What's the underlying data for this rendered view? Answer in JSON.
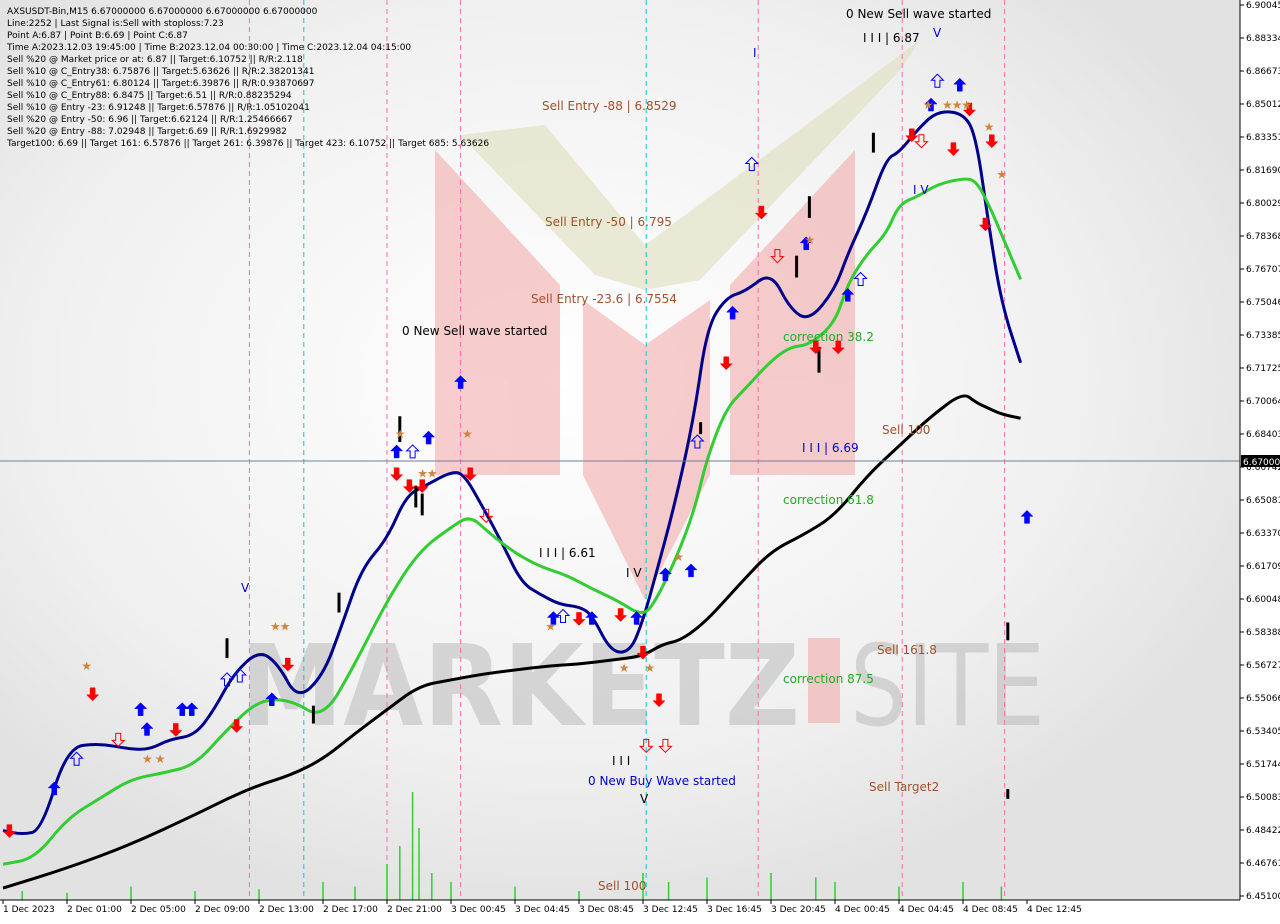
{
  "info": {
    "lines": [
      "AXSUSDT-Bin,M15  6.67000000 6.67000000 6.67000000 6.67000000",
      "Line:2252 | Last Signal is:Sell with stoploss:7.23",
      "Point A:6.87 | Point B:6.69 | Point C:6.87",
      "Time A:2023.12.03 19:45:00 | Time B:2023.12.04 00:30:00 | Time C:2023.12.04 04:15:00",
      "Sell %20 @ Market price or at: 6.87 || Target:6.10752 || R/R:2.118",
      "Sell %10 @ C_Entry38: 6.75876 || Target:5.63626 || R/R:2.38201341",
      "Sell %10 @ C_Entry61: 6.80124 || Target:6.39876 || R/R:0.93870697",
      "Sell %10 @ C_Entry88: 6.8475 || Target:6.51 || R/R:0.88235294",
      "Sell %10 @ Entry -23: 6.91248 || Target:6.57876 || R/R:1.05102041",
      "Sell %20 @ Entry -50: 6.96 || Target:6.62124 || R/R:1.25466667",
      "Sell %20 @ Entry -88: 7.02948 || Target:6.69 || R/R:1.6929982",
      "Target100: 6.69 || Target 161: 6.57876 || Target 261: 6.39876 || Target 423: 6.10752 || Target 685: 5.63626"
    ]
  },
  "price_tag": "6.67000",
  "colors": {
    "background": "#ffffff",
    "fast_ma": "#00008b",
    "mid_ma": "#32cd32",
    "slow_ma": "#000000",
    "annotation_brown": "#a0522d",
    "annotation_green": "#22aa22",
    "annotation_blue": "#0000cd",
    "buy_arrow": "#0000ff",
    "sell_arrow": "#ff0000",
    "magenta_vline": "#ff69b4",
    "cyan_vline": "#00ced1"
  },
  "annotations": {
    "sell_wave_top": "0 New Sell wave started",
    "sell_wave_mid": "0 New Sell wave started",
    "buy_wave": "0 New Buy Wave started",
    "entry_88": "Sell Entry -88 | 6.8529",
    "entry_50": "Sell Entry -50 | 6.795",
    "entry_236": "Sell Entry -23.6 | 6.7554",
    "corr_382": "correction 38.2",
    "corr_618": "correction 61.8",
    "corr_875": "correction 87.5",
    "sell_100": "Sell 100",
    "sell_1618": "Sell 161.8",
    "sell_target2": "Sell Target2",
    "sell_100_bottom": "Sell 100",
    "wave_iii_661": "I I I | 6.61",
    "wave_iii_669": "I I I | 6.69",
    "wave_iii_687": "I I I | 6.87",
    "wave_iv_1": "I V",
    "wave_iv_2": "I V",
    "wave_v_1": "V",
    "wave_v_2": "V",
    "wave_v_3": "V",
    "wave_iii_bottom": "I I I",
    "wave_i": "I"
  },
  "chart_data": {
    "type": "line",
    "title": "AXSUSDT-Bin,M15",
    "x_ticks": [
      "1 Dec 2023",
      "2 Dec 01:00",
      "2 Dec 05:00",
      "2 Dec 09:00",
      "2 Dec 13:00",
      "2 Dec 17:00",
      "2 Dec 21:00",
      "3 Dec 00:45",
      "3 Dec 04:45",
      "3 Dec 08:45",
      "3 Dec 12:45",
      "3 Dec 16:45",
      "3 Dec 20:45",
      "4 Dec 00:45",
      "4 Dec 04:45",
      "4 Dec 08:45",
      "4 Dec 12:45"
    ],
    "y_ticks": [
      "6.90045",
      "6.88334",
      "6.86673",
      "6.85012",
      "6.83351",
      "6.81690",
      "6.80029",
      "6.78368",
      "6.76707",
      "6.75046",
      "6.73385",
      "6.71725",
      "6.70064",
      "6.68403",
      "6.66742",
      "6.65081",
      "6.63370",
      "6.61709",
      "6.60048",
      "6.58388",
      "6.56727",
      "6.55066",
      "6.53405",
      "6.51744",
      "6.50083",
      "6.48422",
      "6.46761",
      "6.45100"
    ],
    "ylim": [
      6.451,
      6.90045
    ],
    "current_price": 6.67,
    "series": [
      {
        "name": "fast",
        "color": "#00008b",
        "x": [
          0,
          0.3,
          0.6,
          1,
          1.5,
          2,
          2.3,
          2.6,
          3,
          3.3,
          3.6,
          4,
          4.3,
          4.6,
          5,
          5.3,
          5.6,
          6,
          6.3,
          6.6,
          7,
          7.2,
          7.5,
          7.8,
          8.1,
          8.4,
          8.7,
          9,
          9.2,
          9.5,
          9.8,
          10,
          10.2,
          10.5,
          10.8,
          11,
          11.3,
          11.6,
          12,
          12.3,
          12.6,
          13,
          13.2,
          13.5,
          13.8,
          14,
          14.3,
          14.6,
          15,
          15.2,
          15.4,
          15.6,
          15.9
        ],
        "y": [
          6.484,
          6.482,
          6.484,
          6.526,
          6.528,
          6.525,
          6.525,
          6.53,
          6.532,
          6.545,
          6.563,
          6.575,
          6.568,
          6.55,
          6.562,
          6.588,
          6.616,
          6.631,
          6.653,
          6.658,
          6.665,
          6.664,
          6.647,
          6.629,
          6.609,
          6.603,
          6.598,
          6.597,
          6.593,
          6.574,
          6.574,
          6.59,
          6.613,
          6.649,
          6.693,
          6.738,
          6.753,
          6.756,
          6.766,
          6.747,
          6.741,
          6.757,
          6.775,
          6.796,
          6.823,
          6.826,
          6.838,
          6.847,
          6.846,
          6.835,
          6.79,
          6.75,
          6.72
        ]
      },
      {
        "name": "mid",
        "color": "#32cd32",
        "x": [
          0,
          0.5,
          1,
          1.5,
          2,
          2.5,
          3,
          3.5,
          4,
          4.5,
          5,
          5.5,
          6,
          6.5,
          7,
          7.3,
          7.6,
          8,
          8.4,
          8.8,
          9.2,
          9.6,
          10,
          10.2,
          10.5,
          10.8,
          11,
          11.3,
          11.6,
          12,
          12.3,
          12.6,
          13,
          13.2,
          13.5,
          13.8,
          14,
          14.3,
          14.6,
          15,
          15.2,
          15.4,
          15.6,
          15.9
        ],
        "y": [
          6.467,
          6.47,
          6.49,
          6.5,
          6.51,
          6.513,
          6.517,
          6.535,
          6.55,
          6.55,
          6.54,
          6.568,
          6.6,
          6.625,
          6.637,
          6.643,
          6.634,
          6.624,
          6.617,
          6.613,
          6.606,
          6.6,
          6.592,
          6.6,
          6.62,
          6.645,
          6.672,
          6.697,
          6.707,
          6.721,
          6.728,
          6.729,
          6.74,
          6.76,
          6.775,
          6.785,
          6.8,
          6.804,
          6.81,
          6.813,
          6.812,
          6.8,
          6.785,
          6.762
        ]
      },
      {
        "name": "slow",
        "color": "#000000",
        "x": [
          0,
          1,
          2,
          3,
          3.5,
          4,
          4.5,
          5,
          5.5,
          6,
          6.5,
          7,
          7.5,
          8,
          8.5,
          9,
          9.5,
          10,
          10.3,
          10.6,
          11,
          11.5,
          12,
          12.5,
          13,
          13.5,
          14,
          14.5,
          15,
          15.2,
          15.4,
          15.6,
          15.9
        ],
        "y": [
          6.455,
          6.465,
          6.477,
          6.492,
          6.5,
          6.507,
          6.512,
          6.52,
          6.533,
          6.545,
          6.557,
          6.56,
          6.563,
          6.565,
          6.567,
          6.568,
          6.57,
          6.572,
          6.578,
          6.58,
          6.59,
          6.608,
          6.625,
          6.633,
          6.643,
          6.663,
          6.678,
          6.693,
          6.705,
          6.7,
          6.697,
          6.694,
          6.692
        ]
      }
    ],
    "volume": [
      {
        "x": 0.3,
        "h": 0.01
      },
      {
        "x": 1,
        "h": 0.008
      },
      {
        "x": 2,
        "h": 0.015
      },
      {
        "x": 3,
        "h": 0.01
      },
      {
        "x": 4,
        "h": 0.012
      },
      {
        "x": 5,
        "h": 0.02
      },
      {
        "x": 5.5,
        "h": 0.015
      },
      {
        "x": 6.0,
        "h": 0.04
      },
      {
        "x": 6.2,
        "h": 0.06
      },
      {
        "x": 6.4,
        "h": 0.12
      },
      {
        "x": 6.5,
        "h": 0.08
      },
      {
        "x": 6.7,
        "h": 0.03
      },
      {
        "x": 7,
        "h": 0.02
      },
      {
        "x": 8,
        "h": 0.015
      },
      {
        "x": 9,
        "h": 0.01
      },
      {
        "x": 10,
        "h": 0.03
      },
      {
        "x": 10.4,
        "h": 0.02
      },
      {
        "x": 11,
        "h": 0.025
      },
      {
        "x": 12,
        "h": 0.03
      },
      {
        "x": 12.7,
        "h": 0.025
      },
      {
        "x": 13,
        "h": 0.02
      },
      {
        "x": 14,
        "h": 0.015
      },
      {
        "x": 15,
        "h": 0.02
      },
      {
        "x": 15.6,
        "h": 0.015
      }
    ],
    "magenta_lines": [
      3.85,
      6.0,
      7.15,
      11.8,
      14.05,
      15.65
    ],
    "cyan_lines": [
      4.7,
      10.05
    ],
    "buy_arrows": [
      [
        0.8,
        6.505
      ],
      [
        2.8,
        6.545
      ],
      [
        2.95,
        6.545
      ],
      [
        2.25,
        6.535
      ],
      [
        2.15,
        6.545
      ],
      [
        4.2,
        6.55
      ],
      [
        6.15,
        6.675
      ],
      [
        6.65,
        6.682
      ],
      [
        7.15,
        6.71
      ],
      [
        8.6,
        6.591
      ],
      [
        9.2,
        6.591
      ],
      [
        9.9,
        6.591
      ],
      [
        10.35,
        6.613
      ],
      [
        10.75,
        6.615
      ],
      [
        11.4,
        6.745
      ],
      [
        12.55,
        6.78
      ],
      [
        13.2,
        6.754
      ],
      [
        14.5,
        6.85
      ],
      [
        14.95,
        6.86
      ],
      [
        16.0,
        6.642
      ]
    ],
    "sell_arrows": [
      [
        0.1,
        6.484
      ],
      [
        1.4,
        6.553
      ],
      [
        2.7,
        6.535
      ],
      [
        3.65,
        6.537
      ],
      [
        4.45,
        6.568
      ],
      [
        6.15,
        6.664
      ],
      [
        6.35,
        6.658
      ],
      [
        6.55,
        6.658
      ],
      [
        7.3,
        6.664
      ],
      [
        9.0,
        6.591
      ],
      [
        9.65,
        6.593
      ],
      [
        10.0,
        6.574
      ],
      [
        10.25,
        6.55
      ],
      [
        11.3,
        6.72
      ],
      [
        11.85,
        6.796
      ],
      [
        12.7,
        6.728
      ],
      [
        13.05,
        6.728
      ],
      [
        14.2,
        6.835
      ],
      [
        14.85,
        6.828
      ],
      [
        15.1,
        6.848
      ],
      [
        15.45,
        6.832
      ],
      [
        15.35,
        6.79
      ]
    ],
    "hollow_buy_arrows": [
      [
        1.15,
        6.52
      ],
      [
        3.5,
        6.56
      ],
      [
        3.7,
        6.562
      ],
      [
        6.4,
        6.675
      ],
      [
        8.75,
        6.592
      ],
      [
        10.85,
        6.68
      ],
      [
        11.7,
        6.82
      ],
      [
        13.4,
        6.762
      ],
      [
        14.6,
        6.862
      ]
    ],
    "hollow_sell_arrows": [
      [
        1.8,
        6.53
      ],
      [
        7.55,
        6.643
      ],
      [
        10.05,
        6.527
      ],
      [
        10.35,
        6.527
      ],
      [
        12.1,
        6.774
      ],
      [
        14.35,
        6.832
      ]
    ],
    "stars": [
      [
        1.3,
        6.567
      ],
      [
        2.25,
        6.52
      ],
      [
        2.45,
        6.52
      ],
      [
        4.25,
        6.587
      ],
      [
        4.4,
        6.587
      ],
      [
        6.2,
        6.684
      ],
      [
        6.55,
        6.664
      ],
      [
        6.7,
        6.664
      ],
      [
        7.25,
        6.684
      ],
      [
        8.55,
        6.587
      ],
      [
        9.7,
        6.566
      ],
      [
        10.1,
        6.566
      ],
      [
        10.55,
        6.622
      ],
      [
        12.6,
        6.782
      ],
      [
        14.45,
        6.85
      ],
      [
        14.75,
        6.85
      ],
      [
        14.9,
        6.85
      ],
      [
        15.05,
        6.85
      ],
      [
        15.4,
        6.839
      ],
      [
        15.6,
        6.815
      ]
    ],
    "candles": [
      [
        3.5,
        6.581,
        6.571
      ],
      [
        4.85,
        6.547,
        6.538
      ],
      [
        5.25,
        6.604,
        6.594
      ],
      [
        6.2,
        6.693,
        6.68
      ],
      [
        6.45,
        6.658,
        6.647
      ],
      [
        6.55,
        6.654,
        6.643
      ],
      [
        10.9,
        6.69,
        6.684
      ],
      [
        12.4,
        6.774,
        6.763
      ],
      [
        12.6,
        6.804,
        6.793
      ],
      [
        12.75,
        6.728,
        6.715
      ],
      [
        13.6,
        6.836,
        6.826
      ],
      [
        15.7,
        6.589,
        6.58
      ],
      [
        15.7,
        6.505,
        6.5
      ]
    ]
  }
}
